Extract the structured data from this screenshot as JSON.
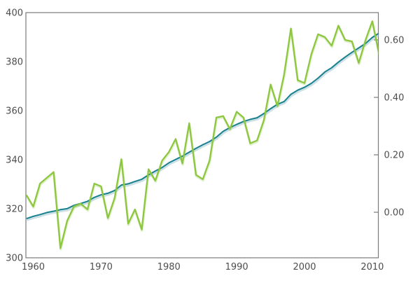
{
  "chart_data": {
    "type": "line",
    "title": "",
    "xlabel": "",
    "ylabel_left": "",
    "ylabel_right": "",
    "grid": false,
    "legend": "none",
    "xlim": [
      1958.9,
      2010.9
    ],
    "ylim_left": [
      300,
      400
    ],
    "ylim_right": [
      -0.16,
      0.7
    ],
    "x_axis": {
      "tick_labels": [
        "1960",
        "1970",
        "1980",
        "1990",
        "2000",
        "2010"
      ],
      "tick_values": [
        1960,
        1970,
        1980,
        1990,
        2000,
        2010
      ]
    },
    "left_axis": {
      "tick_labels": [
        "300",
        "320",
        "340",
        "360",
        "380",
        "400"
      ],
      "tick_values": [
        300,
        320,
        340,
        360,
        380,
        400
      ]
    },
    "right_axis": {
      "tick_labels": [
        "0.00",
        "0.20",
        "0.40",
        "0.60"
      ],
      "tick_values": [
        0.0,
        0.2,
        0.4,
        0.6
      ]
    },
    "x": [
      1959,
      1960,
      1961,
      1962,
      1963,
      1964,
      1965,
      1966,
      1967,
      1968,
      1969,
      1970,
      1971,
      1972,
      1973,
      1974,
      1975,
      1976,
      1977,
      1978,
      1979,
      1980,
      1981,
      1982,
      1983,
      1984,
      1985,
      1986,
      1987,
      1988,
      1989,
      1990,
      1991,
      1992,
      1993,
      1994,
      1995,
      1996,
      1997,
      1998,
      1999,
      2000,
      2001,
      2002,
      2003,
      2004,
      2005,
      2006,
      2007,
      2008,
      2009,
      2010,
      2011
    ],
    "series": [
      {
        "name": "co2_ppm",
        "axis": "left",
        "style": "smooth-rising",
        "color": "#17818e",
        "values": [
          315.97,
          316.91,
          317.64,
          318.45,
          318.99,
          319.62,
          320.04,
          321.38,
          322.18,
          323.04,
          324.62,
          325.68,
          326.32,
          327.45,
          329.68,
          330.18,
          331.11,
          332.04,
          333.83,
          335.4,
          336.84,
          338.75,
          340.11,
          341.45,
          343.05,
          344.65,
          346.12,
          347.42,
          349.19,
          351.57,
          353.12,
          354.39,
          355.61,
          356.45,
          357.1,
          358.83,
          360.82,
          362.61,
          363.73,
          366.7,
          368.38,
          369.55,
          371.14,
          373.28,
          375.8,
          377.52,
          379.8,
          381.9,
          383.79,
          385.6,
          387.43,
          389.9,
          391.65
        ]
      },
      {
        "name": "temp_anomaly",
        "axis": "right",
        "style": "jagged",
        "color": "#8dc63f",
        "values": [
          0.06,
          0.02,
          0.1,
          0.12,
          0.14,
          -0.125,
          -0.03,
          0.02,
          0.03,
          0.01,
          0.1,
          0.09,
          -0.02,
          0.05,
          0.185,
          -0.04,
          0.01,
          -0.06,
          0.15,
          0.11,
          0.18,
          0.21,
          0.255,
          0.17,
          0.31,
          0.13,
          0.115,
          0.18,
          0.33,
          0.335,
          0.29,
          0.35,
          0.33,
          0.24,
          0.25,
          0.32,
          0.445,
          0.37,
          0.48,
          0.64,
          0.46,
          0.45,
          0.55,
          0.62,
          0.61,
          0.58,
          0.65,
          0.6,
          0.595,
          0.52,
          0.6,
          0.665,
          0.55
        ]
      }
    ]
  },
  "colors": {
    "background": "#ffffff",
    "axis": "#7a7a7a",
    "tick_label": "#4d4d4d",
    "co2_line": "#17818e",
    "co2_shadow": "#b9d4dc",
    "temp_line": "#8dc63f",
    "temp_shadow": "#8dc63f"
  }
}
